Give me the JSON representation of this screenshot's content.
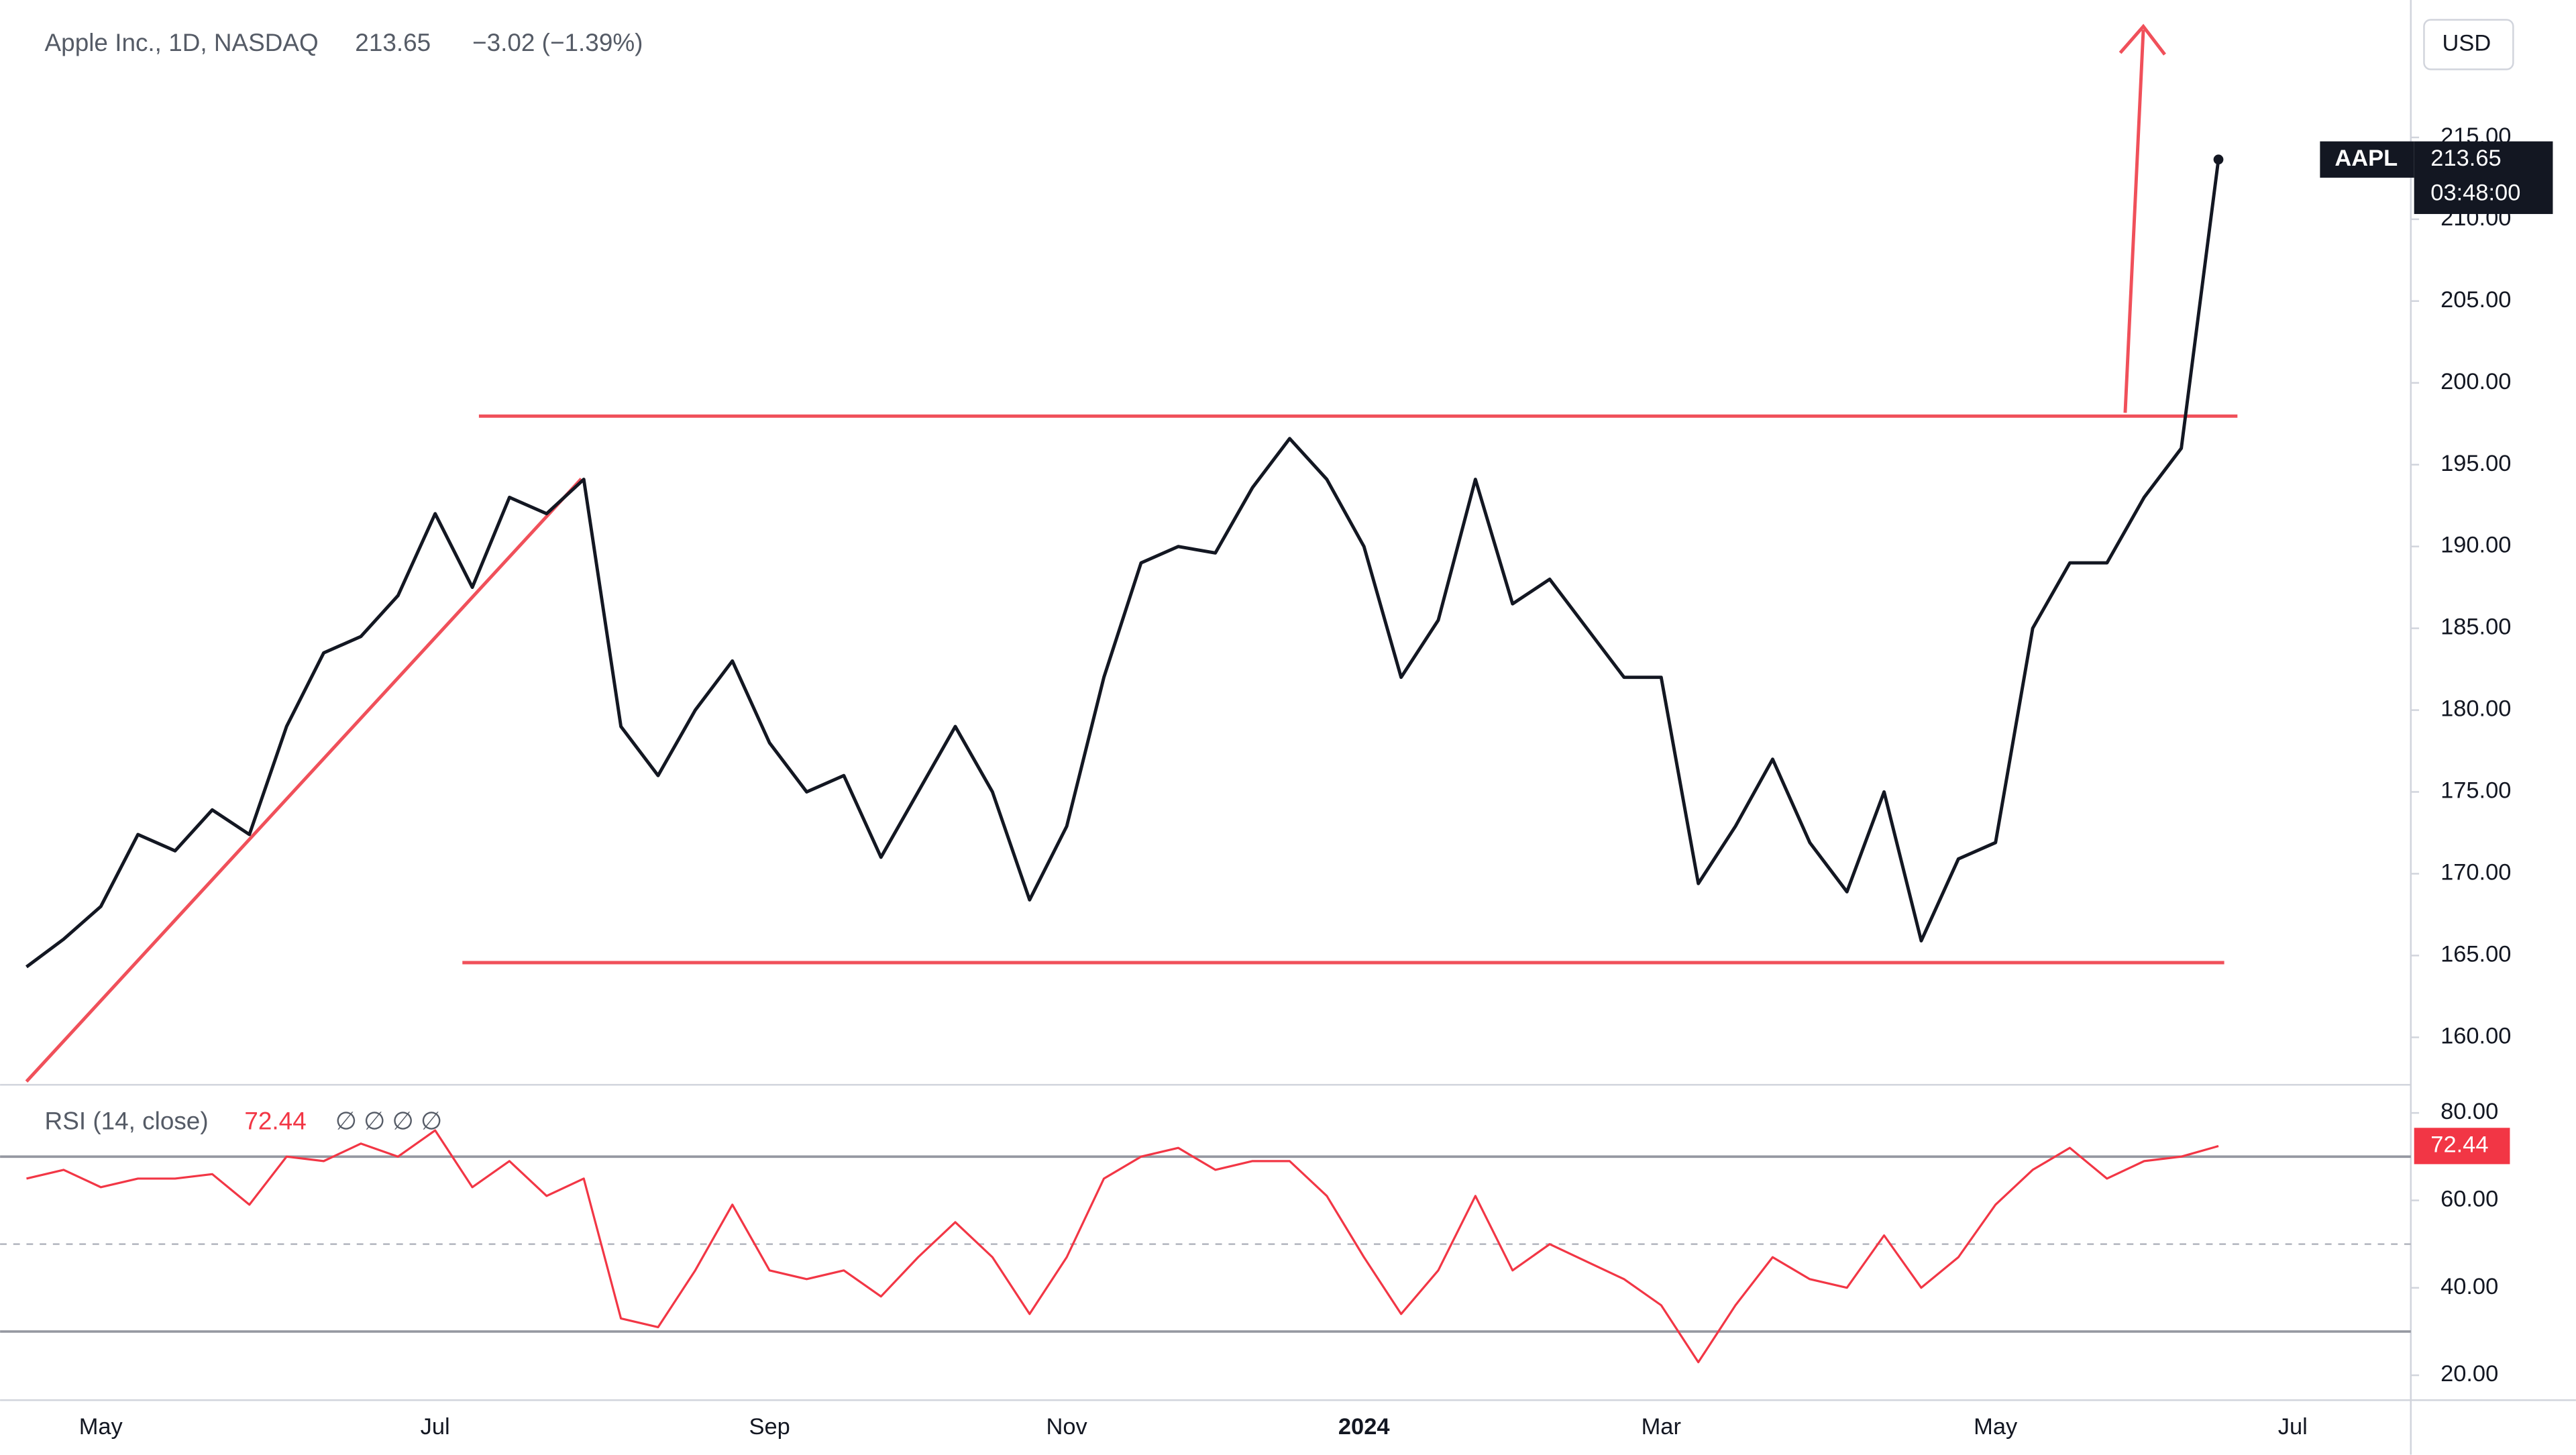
{
  "chart_data": [
    {
      "type": "line",
      "title": "Apple Inc., 1D, NASDAQ",
      "close": 213.65,
      "change": "−3.02 (−1.39%)",
      "currency": "USD",
      "countdown": "03:48:00",
      "series": [
        {
          "name": "AAPL",
          "color": "#131722",
          "values": [
            164.3,
            166,
            168,
            172.4,
            171.4,
            173.9,
            172.4,
            179,
            183.5,
            184.5,
            187,
            192,
            187.5,
            193,
            192,
            194.1,
            179,
            176,
            180,
            183,
            178,
            175,
            176,
            171,
            175,
            179,
            175,
            168.4,
            172.9,
            182,
            189,
            190,
            189.6,
            193.6,
            196.6,
            194.1,
            190,
            182,
            185.5,
            194.1,
            186.5,
            188,
            185,
            182,
            182,
            169.4,
            172.9,
            177,
            171.9,
            168.9,
            175,
            165.9,
            170.9,
            171.9,
            185,
            189,
            189,
            193,
            196,
            213.65,
            null,
            null,
            null,
            null
          ]
        }
      ],
      "ylim": [
        157.3,
        223.4
      ],
      "yticks": [
        {
          "value": 160,
          "label": "160.00"
        },
        {
          "value": 165,
          "label": "165.00"
        },
        {
          "value": 170,
          "label": "170.00"
        },
        {
          "value": 175,
          "label": "175.00"
        },
        {
          "value": 180,
          "label": "180.00"
        },
        {
          "value": 185,
          "label": "185.00"
        },
        {
          "value": 190,
          "label": "190.00"
        },
        {
          "value": 195,
          "label": "195.00"
        },
        {
          "value": 200,
          "label": "200.00"
        },
        {
          "value": 205,
          "label": "205.00"
        },
        {
          "value": 210,
          "label": "210.00"
        },
        {
          "value": 215,
          "label": "215.00"
        }
      ]
    },
    {
      "type": "line",
      "title": "RSI (14, close)",
      "plots": "∅  ∅  ∅  ∅",
      "color": "#f23645",
      "categories": [
        null,
        null,
        "May",
        null,
        null,
        null,
        null,
        null,
        null,
        null,
        null,
        "Jul",
        null,
        null,
        null,
        null,
        null,
        null,
        null,
        null,
        "Sep",
        null,
        null,
        null,
        null,
        null,
        null,
        null,
        "Nov",
        null,
        null,
        null,
        null,
        null,
        null,
        null,
        "2024",
        null,
        null,
        null,
        null,
        null,
        null,
        null,
        "Mar",
        null,
        null,
        null,
        null,
        null,
        null,
        null,
        null,
        "May",
        null,
        null,
        null,
        null,
        null,
        null,
        null,
        "Jul",
        null,
        null
      ],
      "values": [
        65,
        67,
        63,
        65,
        65,
        66,
        59,
        70,
        69,
        73,
        70,
        76,
        63,
        69,
        61,
        65,
        33,
        31,
        44,
        59,
        44,
        42,
        44,
        38,
        47,
        55,
        47,
        34,
        47,
        65,
        70,
        72,
        67,
        69,
        69,
        61,
        47,
        34,
        44,
        61,
        44,
        50,
        46,
        42,
        36,
        23,
        36,
        47,
        42,
        40,
        52,
        40,
        47,
        59,
        67,
        72,
        65,
        69,
        70,
        72.44,
        null,
        null,
        null,
        null
      ],
      "bands": [
        70,
        30
      ],
      "midline": 50,
      "ylim": [
        14.3,
        85.3
      ],
      "yticks": [
        {
          "value": 80,
          "label": "80.00"
        },
        {
          "value": 60,
          "label": "60.00"
        },
        {
          "value": 40,
          "label": "40.00"
        },
        {
          "value": 20,
          "label": "20.00"
        }
      ]
    }
  ]
}
